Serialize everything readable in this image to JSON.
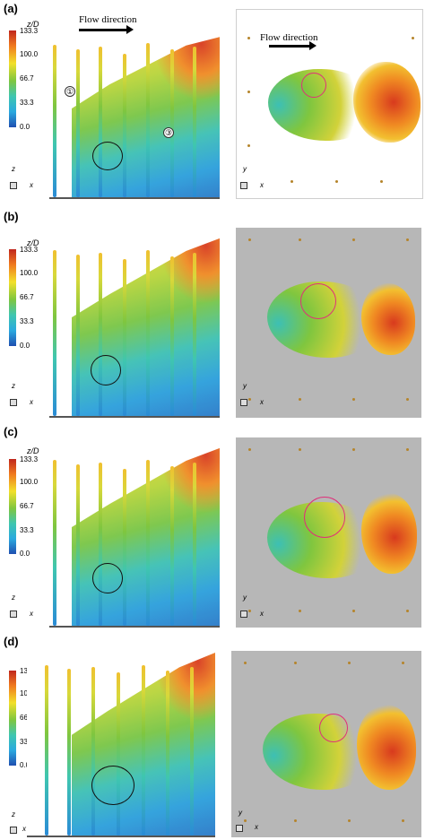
{
  "colorbar": {
    "title": "z/D",
    "ticks": [
      "133.3",
      "100.0",
      "66.7",
      "33.3",
      "0.0"
    ],
    "colors": [
      "#c0261d",
      "#f07a1e",
      "#f2e02a",
      "#7fc63f",
      "#3fc6b0",
      "#2aa9df",
      "#1f4fb0"
    ]
  },
  "flow_label": "Flow direction",
  "axes": {
    "z": "z",
    "x": "x",
    "y": "y"
  },
  "annotations": {
    "one": "①",
    "three": "③"
  },
  "panels": [
    {
      "label": "(a)"
    },
    {
      "label": "(b)"
    },
    {
      "label": "(c)"
    },
    {
      "label": "(d)"
    }
  ]
}
